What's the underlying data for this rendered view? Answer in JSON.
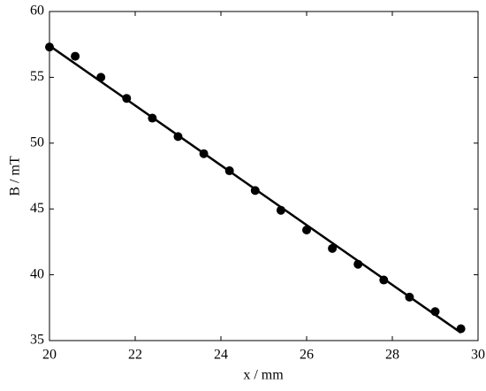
{
  "chart_data": {
    "type": "scatter",
    "x_label": "x / mm",
    "y_label": "B / mT",
    "xlim": [
      20,
      30
    ],
    "xticks": [
      20,
      22,
      24,
      26,
      28,
      30
    ],
    "ylim": [
      35,
      60
    ],
    "yticks": [
      35,
      40,
      45,
      50,
      55,
      60
    ],
    "series": [
      {
        "type": "scatter",
        "color": "#000000",
        "x": [
          20,
          20.6,
          21.2,
          21.8,
          22.4,
          23,
          23.6,
          24.2,
          24.8,
          25.4,
          26,
          26.6,
          27.2,
          27.8,
          28.4,
          29,
          29.6
        ],
        "values": [
          57.3,
          56.6,
          55.0,
          53.4,
          51.9,
          50.5,
          49.2,
          47.9,
          46.4,
          44.9,
          43.4,
          42.0,
          40.8,
          39.6,
          38.3,
          37.2,
          35.9
        ]
      },
      {
        "type": "line",
        "color": "#000000",
        "x": [
          20,
          29.6
        ],
        "values": [
          57.4,
          35.6
        ]
      }
    ]
  }
}
